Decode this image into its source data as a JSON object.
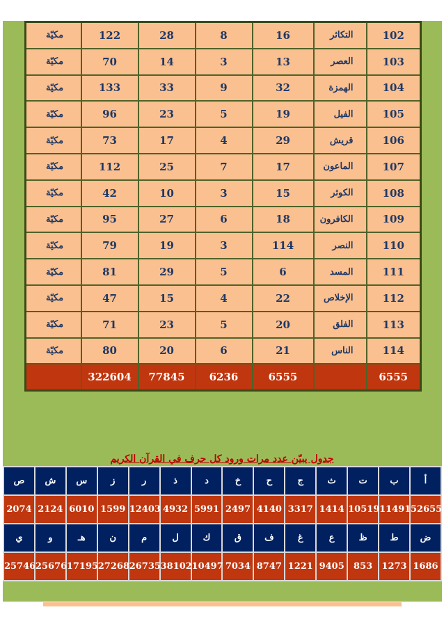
{
  "surah_table": {
    "rows": [
      {
        "num": "102",
        "name": "التكاثر",
        "c1": "16",
        "c2": "8",
        "c3": "28",
        "c4": "122",
        "type": "مكيّة"
      },
      {
        "num": "103",
        "name": "العصر",
        "c1": "13",
        "c2": "3",
        "c3": "14",
        "c4": "70",
        "type": "مكيّة"
      },
      {
        "num": "104",
        "name": "الهمزة",
        "c1": "32",
        "c2": "9",
        "c3": "33",
        "c4": "133",
        "type": "مكيّة"
      },
      {
        "num": "105",
        "name": "الفيل",
        "c1": "19",
        "c2": "5",
        "c3": "23",
        "c4": "96",
        "type": "مكيّة"
      },
      {
        "num": "106",
        "name": "قريش",
        "c1": "29",
        "c2": "4",
        "c3": "17",
        "c4": "73",
        "type": "مكيّة"
      },
      {
        "num": "107",
        "name": "الماعون",
        "c1": "17",
        "c2": "7",
        "c3": "25",
        "c4": "112",
        "type": "مكيّة"
      },
      {
        "num": "108",
        "name": "الكوثر",
        "c1": "15",
        "c2": "3",
        "c3": "10",
        "c4": "42",
        "type": "مكيّة"
      },
      {
        "num": "109",
        "name": "الكافرون",
        "c1": "18",
        "c2": "6",
        "c3": "27",
        "c4": "95",
        "type": "مكيّة"
      },
      {
        "num": "110",
        "name": "النصر",
        "c1": "114",
        "c2": "3",
        "c3": "19",
        "c4": "79",
        "type": "مكيّة"
      },
      {
        "num": "111",
        "name": "المسد",
        "c1": "6",
        "c2": "5",
        "c3": "29",
        "c4": "81",
        "type": "مكيّة"
      },
      {
        "num": "112",
        "name": "الإخلاص",
        "c1": "22",
        "c2": "4",
        "c3": "15",
        "c4": "47",
        "type": "مكيّة"
      },
      {
        "num": "113",
        "name": "الفلق",
        "c1": "20",
        "c2": "5",
        "c3": "23",
        "c4": "71",
        "type": "مكيّة"
      },
      {
        "num": "114",
        "name": "الناس",
        "c1": "21",
        "c2": "6",
        "c3": "20",
        "c4": "80",
        "type": "مكيّة"
      }
    ],
    "totals": {
      "num": "6555",
      "name": "",
      "c1": "6555",
      "c2": "6236",
      "c3": "77845",
      "c4": "322604",
      "type": ""
    }
  },
  "letters_caption": "جدول يبيّن عدد مرات ورود كل حرف في القرآن الكريم",
  "letters_row1": [
    {
      "letter": "أ",
      "count": "52655"
    },
    {
      "letter": "ب",
      "count": "11491"
    },
    {
      "letter": "ت",
      "count": "10519"
    },
    {
      "letter": "ث",
      "count": "1414"
    },
    {
      "letter": "ج",
      "count": "3317"
    },
    {
      "letter": "ح",
      "count": "4140"
    },
    {
      "letter": "خ",
      "count": "2497"
    },
    {
      "letter": "د",
      "count": "5991"
    },
    {
      "letter": "ذ",
      "count": "4932"
    },
    {
      "letter": "ر",
      "count": "12403"
    },
    {
      "letter": "ز",
      "count": "1599"
    },
    {
      "letter": "س",
      "count": "6010"
    },
    {
      "letter": "ش",
      "count": "2124"
    },
    {
      "letter": "ص",
      "count": "2074"
    }
  ],
  "letters_row2": [
    {
      "letter": "ض",
      "count": "1686"
    },
    {
      "letter": "ط",
      "count": "1273"
    },
    {
      "letter": "ظ",
      "count": "853"
    },
    {
      "letter": "ع",
      "count": "9405"
    },
    {
      "letter": "غ",
      "count": "1221"
    },
    {
      "letter": "ف",
      "count": "8747"
    },
    {
      "letter": "ق",
      "count": "7034"
    },
    {
      "letter": "ك",
      "count": "10497"
    },
    {
      "letter": "ل",
      "count": "38102"
    },
    {
      "letter": "م",
      "count": "26735"
    },
    {
      "letter": "ن",
      "count": "27268"
    },
    {
      "letter": "هـ",
      "count": "17195"
    },
    {
      "letter": "و",
      "count": "25676"
    },
    {
      "letter": "ي",
      "count": "25746"
    }
  ],
  "colors": {
    "panel_green": "#9bbb59",
    "cell_peach": "#fac090",
    "total_red": "#c0360e",
    "letter_navy": "#002060",
    "caption_red": "#c00000",
    "text_navy": "#1f3864"
  }
}
